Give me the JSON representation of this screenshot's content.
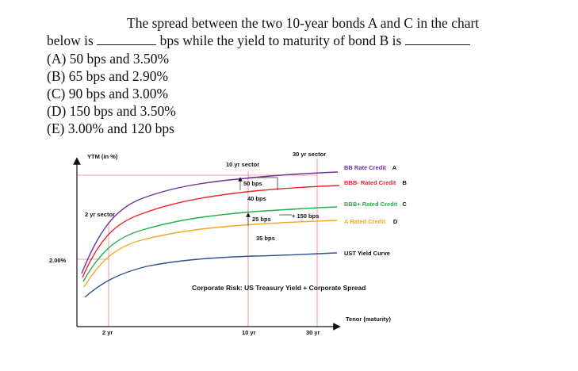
{
  "question": {
    "line1": "The spread between the two 10-year bonds A and C in the chart",
    "line2a": "below is",
    "line2b": "bps while the yield to maturity of bond B is",
    "options": [
      "(A) 50 bps and 3.50%",
      "(B) 65 bps and 2.90%",
      "(C) 90 bps and 3.00%",
      "(D) 150 bps and 3.50%",
      "(E)  3.00% and 120 bps"
    ]
  },
  "chart_data": {
    "type": "line",
    "ylabel": "YTM (in %)",
    "xlabel": "Tenor (maturity)",
    "y_tick_label": "2.00%",
    "x_tick_labels": [
      "2 yr",
      "10 yr",
      "30 yr"
    ],
    "sector_labels": [
      "2 yr sector",
      "10 yr sector",
      "30 yr sector"
    ],
    "series": [
      {
        "name": "BB Rate Credit",
        "marker": "A",
        "color": "#7030a0"
      },
      {
        "name": "BBB- Rated Credit",
        "marker": "B",
        "color": "#e8262b"
      },
      {
        "name": "BBB+ Rated Credit",
        "marker": "C",
        "color": "#22b14c"
      },
      {
        "name": "A Rated Credit",
        "marker": "D",
        "color": "#f5a623"
      },
      {
        "name": "UST Yield Curve",
        "marker": "",
        "color": "#2f4f8f"
      }
    ],
    "spread_annotations": [
      "50 bps",
      "40 bps",
      "25 bps",
      "35 bps",
      "+ 150 bps"
    ],
    "caption": "Corporate Risk: US Treasury Yield + Corporate Spread",
    "label_colors": {
      "a_rated": "#f5a623",
      "bbb_plus": "#22b14c",
      "bbb_minus": "#e8262b",
      "bb": "#7030a0"
    }
  }
}
